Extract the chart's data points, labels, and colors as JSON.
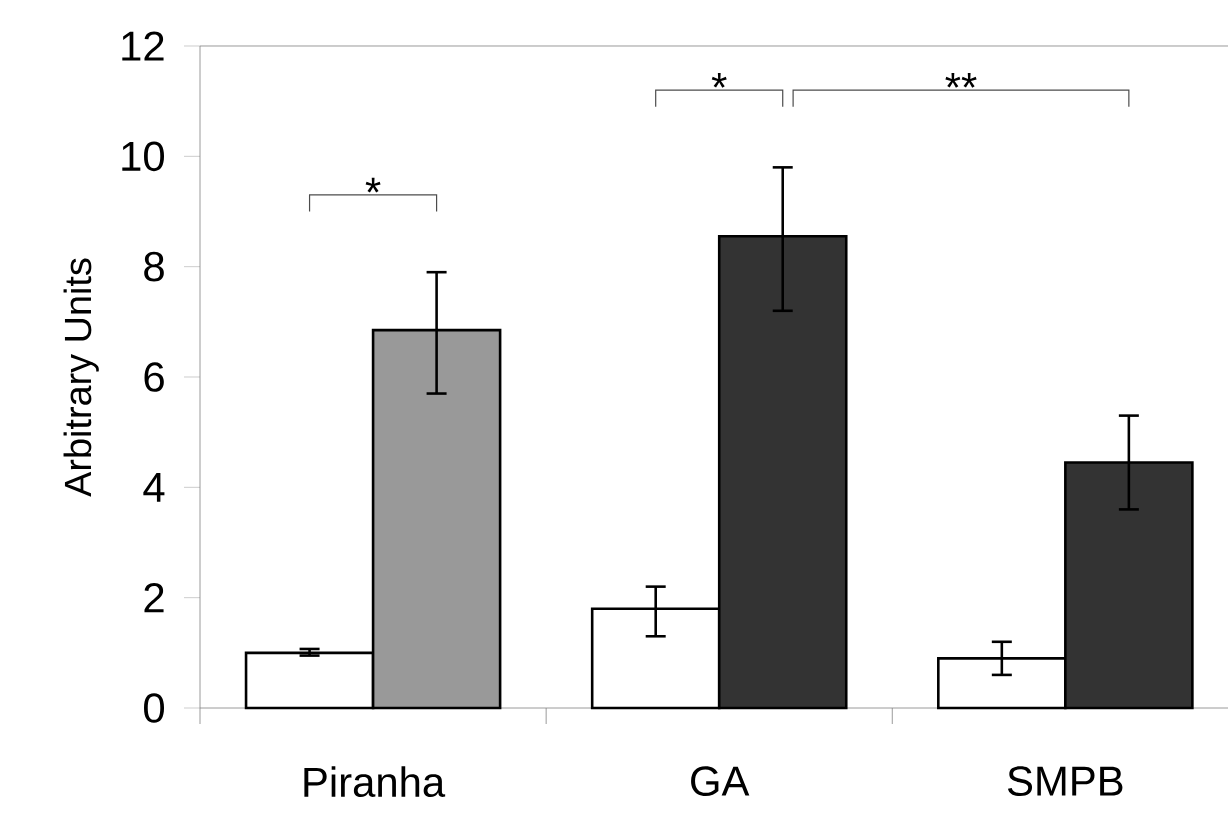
{
  "chart_data": {
    "type": "bar",
    "ylabel": "Arbitrary Units",
    "categories": [
      "Piranha",
      "GA",
      "SMPB"
    ],
    "ylim": [
      0,
      12
    ],
    "yticks": [
      0,
      2,
      4,
      6,
      8,
      10,
      12
    ],
    "series": [
      {
        "color": "#ffffff",
        "values": [
          1.0,
          1.8,
          0.9
        ],
        "errors": [
          [
            0.95,
            1.07
          ],
          [
            1.3,
            2.2
          ],
          [
            0.6,
            1.2
          ]
        ]
      },
      {
        "colors": [
          "#999999",
          "#333333",
          "#333333"
        ],
        "values": [
          6.85,
          8.55,
          4.45
        ],
        "errors": [
          [
            5.7,
            7.9
          ],
          [
            7.2,
            9.8
          ],
          [
            3.6,
            5.3
          ]
        ]
      }
    ],
    "annotations": [
      "*",
      "*",
      "**"
    ]
  }
}
